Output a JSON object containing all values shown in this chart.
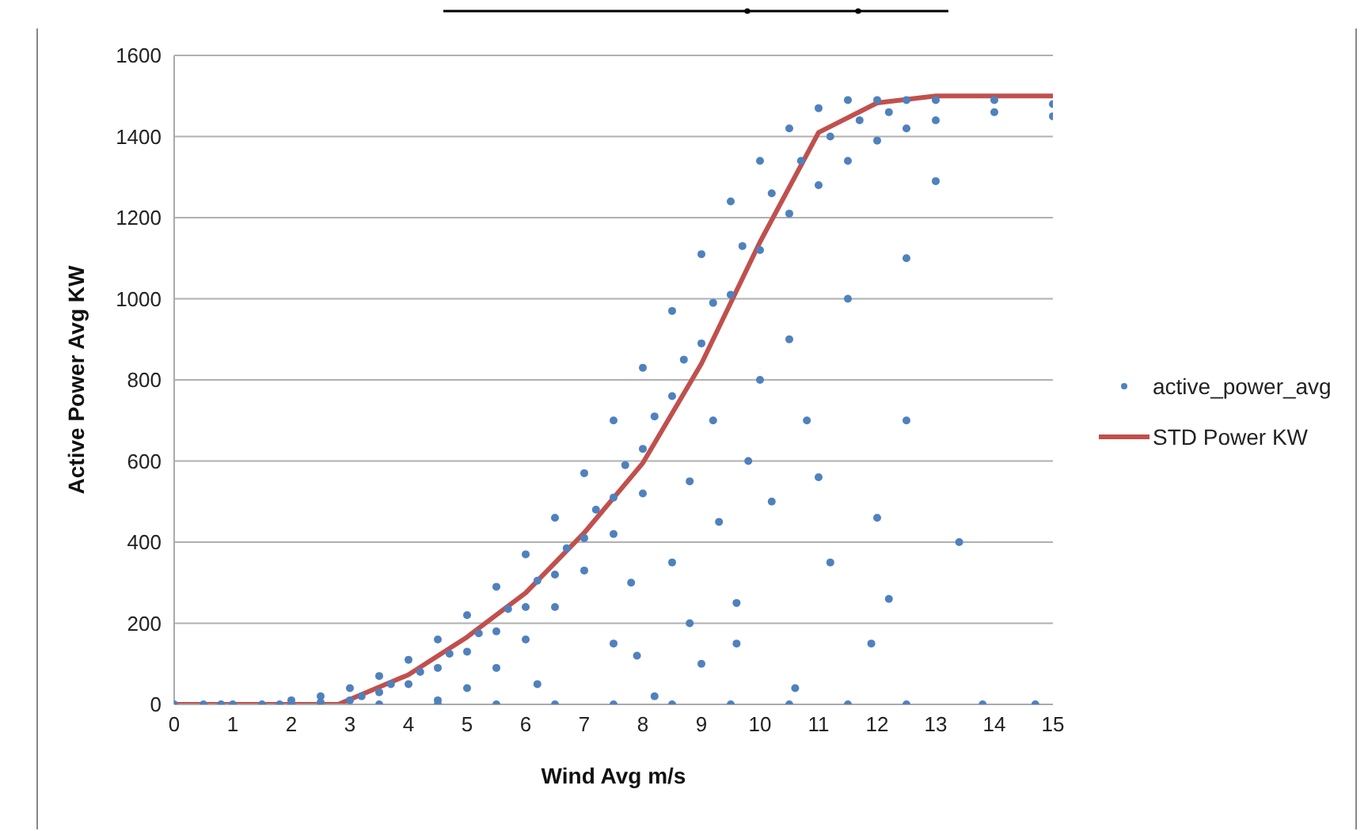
{
  "chart_data": {
    "type": "scatter",
    "xlabel": "Wind Avg m/s",
    "ylabel": "Active Power Avg KW",
    "xlim": [
      0,
      15
    ],
    "xticks": [
      0,
      1,
      2,
      3,
      4,
      5,
      6,
      7,
      8,
      9,
      10,
      11,
      12,
      13,
      14,
      15
    ],
    "ylim": [
      0,
      1600
    ],
    "yticks": [
      0,
      200,
      400,
      600,
      800,
      1000,
      1200,
      1400,
      1600
    ],
    "grid": "y",
    "legend": "right",
    "series": [
      {
        "name": "active_power_avg",
        "marker": "circle",
        "color": "#4f81bd",
        "x": [
          0,
          0.5,
          1,
          1.5,
          2,
          2,
          2.5,
          2.5,
          3,
          3,
          3.5,
          3.5,
          4,
          4,
          4.5,
          4.5,
          5,
          5,
          5.5,
          5.5,
          6,
          6,
          6.5,
          6.5,
          7,
          7,
          7.5,
          7.5,
          8,
          8,
          8.5,
          8.5,
          9,
          9,
          9.5,
          9.5,
          10,
          10,
          10.5,
          10.5,
          11,
          11,
          11.5,
          11.5,
          12,
          12,
          12.5,
          12.5,
          13,
          13,
          14,
          14,
          15,
          15,
          3.2,
          3.7,
          4.2,
          4.7,
          5.2,
          5.7,
          6.2,
          6.7,
          7.2,
          7.7,
          8.2,
          8.7,
          9.2,
          9.7,
          10.2,
          10.7,
          11.2,
          11.7,
          12.2,
          4.5,
          5,
          5.5,
          6,
          6.5,
          7,
          7.5,
          8,
          0.8,
          1.8,
          3.5,
          4.5,
          5.5,
          6.5,
          7.5,
          8.5,
          9.5,
          10.5,
          11.5,
          12.5,
          13.8,
          14.7,
          8.5,
          8.8,
          9,
          9.3,
          9.6,
          9.8,
          10,
          10.2,
          10.5,
          10.8,
          11,
          11.2,
          11.5,
          12,
          12.2,
          11.9,
          12.5,
          13.4,
          13,
          12.5,
          9.2,
          8.8,
          7.8,
          7.5,
          7.9,
          6.2,
          9.6,
          10.6,
          8.2
        ],
        "values": [
          0,
          0,
          0,
          0,
          10,
          0,
          20,
          5,
          40,
          10,
          70,
          30,
          110,
          50,
          160,
          90,
          220,
          130,
          290,
          180,
          370,
          240,
          460,
          320,
          570,
          410,
          700,
          510,
          830,
          630,
          970,
          760,
          1110,
          890,
          1240,
          1010,
          1340,
          1120,
          1420,
          1210,
          1470,
          1280,
          1490,
          1340,
          1490,
          1390,
          1490,
          1420,
          1490,
          1440,
          1490,
          1460,
          1480,
          1450,
          20,
          50,
          80,
          125,
          175,
          235,
          305,
          385,
          480,
          590,
          710,
          850,
          990,
          1130,
          1260,
          1340,
          1400,
          1440,
          1460,
          10,
          40,
          90,
          160,
          240,
          330,
          420,
          520,
          0,
          0,
          0,
          0,
          0,
          0,
          0,
          0,
          0,
          0,
          0,
          0,
          0,
          0,
          350,
          200,
          100,
          450,
          250,
          600,
          800,
          500,
          900,
          700,
          560,
          350,
          1000,
          460,
          260,
          150,
          700,
          400,
          1290,
          1100,
          700,
          550,
          300,
          150,
          120,
          50,
          150,
          40,
          20
        ]
      },
      {
        "name": "STD Power KW",
        "type": "line",
        "marker": "none",
        "line_style": "solid",
        "color": "#c0504d",
        "x": [
          0,
          2.8,
          4,
          5,
          6,
          7,
          8,
          9,
          10,
          11,
          12,
          13,
          15
        ],
        "values": [
          0,
          0,
          73,
          166,
          275,
          423,
          595,
          840,
          1140,
          1410,
          1483,
          1500,
          1500
        ]
      }
    ]
  }
}
